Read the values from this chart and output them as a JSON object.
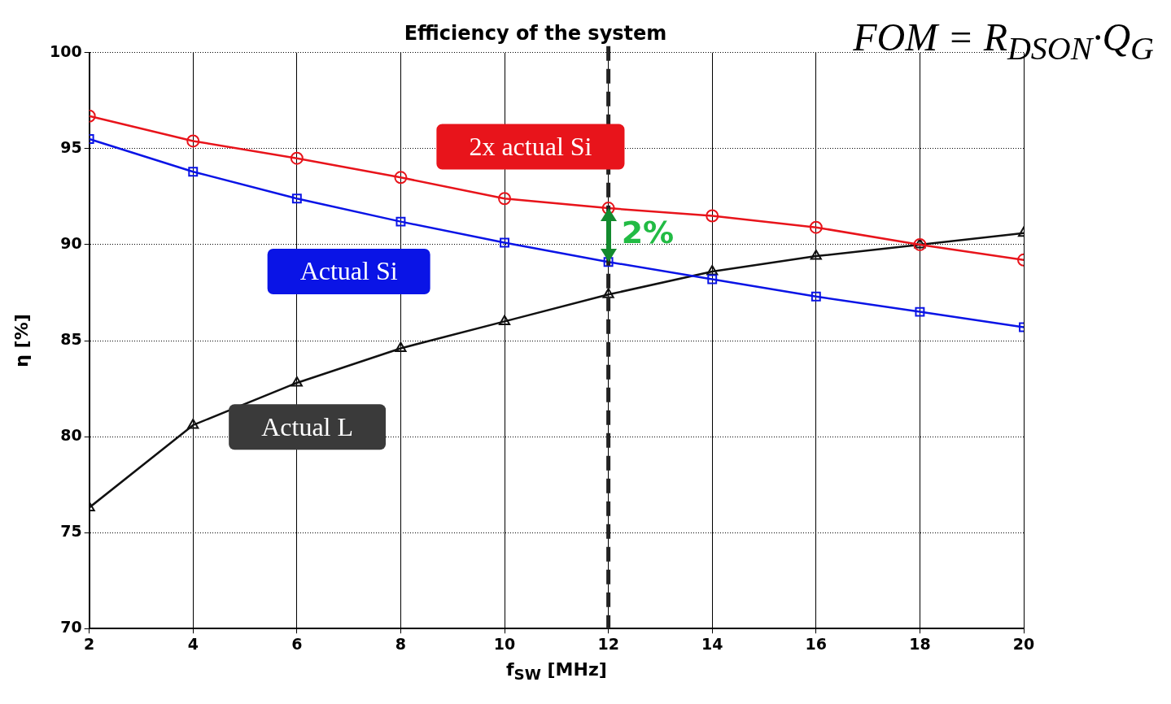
{
  "chart_data": {
    "type": "line",
    "title": "Efficiency of the system",
    "xlabel": "f$_{SW}$ [MHz]",
    "ylabel": "η [%]",
    "x": [
      2,
      4,
      6,
      8,
      10,
      12,
      14,
      16,
      18,
      20
    ],
    "series": [
      {
        "name": "2x actual Si",
        "color": "#e8141b",
        "marker": "circle",
        "values": [
          96.7,
          95.4,
          94.5,
          93.5,
          92.4,
          91.9,
          91.5,
          90.9,
          90.0,
          89.2
        ]
      },
      {
        "name": "Actual Si",
        "color": "#0a14e6",
        "marker": "square",
        "values": [
          95.5,
          93.8,
          92.4,
          91.2,
          90.1,
          89.1,
          88.2,
          87.3,
          86.5,
          85.7
        ]
      },
      {
        "name": "Actual L",
        "color": "#111111",
        "marker": "triangle",
        "values": [
          76.3,
          80.6,
          82.8,
          84.6,
          86.0,
          87.4,
          88.6,
          89.4,
          90.0,
          90.6
        ]
      }
    ],
    "xlim": [
      2,
      20
    ],
    "xticks": [
      2,
      4,
      6,
      8,
      10,
      12,
      14,
      16,
      18,
      20
    ],
    "ylim": [
      70,
      100
    ],
    "yticks": [
      70,
      75,
      80,
      85,
      90,
      95,
      100
    ],
    "grid": true,
    "legend": false,
    "line_style": "solid",
    "ref_lines": [
      {
        "axis": "x",
        "value": 12,
        "color": "#222222",
        "line_style": "dashed"
      }
    ],
    "annotations": [
      {
        "text": "2%",
        "x": 12,
        "y": 90.5
      },
      "FOM = R$_{DSON}$·Q$_{G}$"
    ]
  }
}
